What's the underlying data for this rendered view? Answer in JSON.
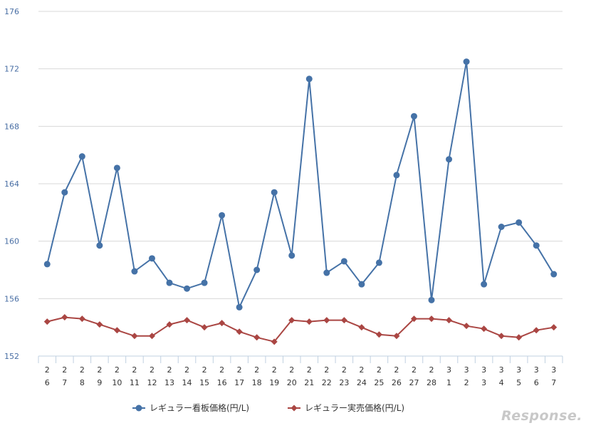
{
  "chart_data": {
    "type": "line",
    "categories": [
      [
        "2",
        "6"
      ],
      [
        "2",
        "7"
      ],
      [
        "2",
        "8"
      ],
      [
        "2",
        "9"
      ],
      [
        "2",
        "10"
      ],
      [
        "2",
        "11"
      ],
      [
        "2",
        "12"
      ],
      [
        "2",
        "13"
      ],
      [
        "2",
        "14"
      ],
      [
        "2",
        "15"
      ],
      [
        "2",
        "16"
      ],
      [
        "2",
        "17"
      ],
      [
        "2",
        "18"
      ],
      [
        "2",
        "19"
      ],
      [
        "2",
        "20"
      ],
      [
        "2",
        "21"
      ],
      [
        "2",
        "22"
      ],
      [
        "2",
        "23"
      ],
      [
        "2",
        "24"
      ],
      [
        "2",
        "25"
      ],
      [
        "2",
        "26"
      ],
      [
        "2",
        "27"
      ],
      [
        "2",
        "28"
      ],
      [
        "3",
        "1"
      ],
      [
        "3",
        "2"
      ],
      [
        "3",
        "3"
      ],
      [
        "3",
        "4"
      ],
      [
        "3",
        "5"
      ],
      [
        "3",
        "6"
      ],
      [
        "3",
        "7"
      ]
    ],
    "series": [
      {
        "name": "レギュラー看板価格(円/L)",
        "color": "#4572a7",
        "marker": "circle",
        "values": [
          158.4,
          163.4,
          165.9,
          159.7,
          165.1,
          157.9,
          158.8,
          157.1,
          156.7,
          157.1,
          161.8,
          155.4,
          158.0,
          163.4,
          159.0,
          171.3,
          157.8,
          158.6,
          157.0,
          158.5,
          164.6,
          168.7,
          155.9,
          165.7,
          172.5,
          157.0,
          161.0,
          161.3,
          159.7,
          157.7
        ]
      },
      {
        "name": "レギュラー実売価格(円/L)",
        "color": "#aa4643",
        "marker": "diamond",
        "values": [
          154.4,
          154.7,
          154.6,
          154.2,
          153.8,
          153.4,
          153.4,
          154.2,
          154.5,
          154.0,
          154.3,
          153.7,
          153.3,
          153.0,
          154.5,
          154.4,
          154.5,
          154.5,
          154.0,
          153.5,
          153.4,
          154.6,
          154.6,
          154.5,
          154.1,
          153.9,
          153.4,
          153.3,
          153.8,
          154.0
        ]
      }
    ],
    "ylim": [
      152,
      176
    ],
    "yticks": [
      176,
      172,
      168,
      164,
      160,
      156,
      152
    ],
    "grid": true,
    "legend_position": "bottom"
  },
  "watermark": "Response."
}
